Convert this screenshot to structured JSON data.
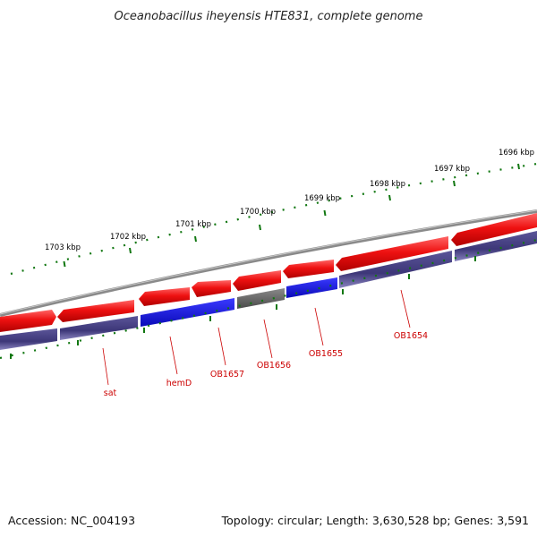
{
  "title": "Oceanobacillus iheyensis HTE831, complete genome",
  "footer": {
    "accession": "Accession: NC_004193",
    "summary": "Topology: circular; Length: 3,630,528 bp; Genes: 3,591"
  },
  "colors": {
    "backbone": "#7f7f7f",
    "forward_gene": "#ee1111",
    "reverse_gene": "#1a1ad8",
    "other_gene": "#666666",
    "reverse_track": "#4a4488",
    "tick": "#117711",
    "label_line": "#cc0000"
  },
  "ticks": [
    {
      "label": "1703 kbp"
    },
    {
      "label": "1702 kbp"
    },
    {
      "label": "1701 kbp"
    },
    {
      "label": "1700 kbp"
    },
    {
      "label": "1699 kbp"
    },
    {
      "label": "1698 kbp"
    },
    {
      "label": "1697 kbp"
    },
    {
      "label": "1696 kbp"
    }
  ],
  "gene_labels": [
    {
      "name": "sat"
    },
    {
      "name": "hemD"
    },
    {
      "name": "OB1657"
    },
    {
      "name": "OB1656"
    },
    {
      "name": "OB1655"
    },
    {
      "name": "OB1654"
    }
  ]
}
